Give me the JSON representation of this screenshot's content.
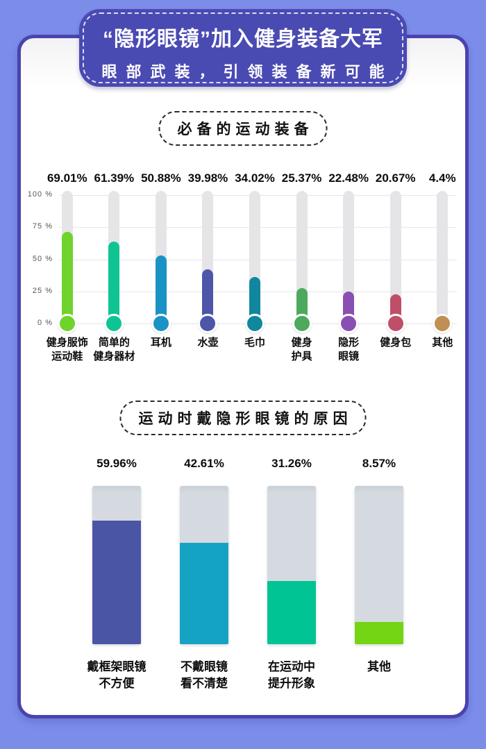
{
  "page": {
    "background": "#7b8ce9",
    "card_background": "#ffffff",
    "card_border_color": "#4a43ae"
  },
  "header": {
    "title": "“隐形眼镜”加入健身装备大军",
    "subtitle": "眼部武装，引领装备新可能",
    "badge_color": "#4a4ab3"
  },
  "chart_data": [
    {
      "type": "bar",
      "style": "thermometer-lollipop",
      "title": "必备的运动装备",
      "categories": [
        "健身服饰\n运动鞋",
        "简单的\n健身器材",
        "耳机",
        "水壶",
        "毛巾",
        "健身\n护具",
        "隐形\n眼镜",
        "健身包",
        "其他"
      ],
      "values": [
        69.01,
        61.39,
        50.88,
        39.98,
        34.02,
        25.37,
        22.48,
        20.67,
        4.4
      ],
      "value_labels": [
        "69.01%",
        "61.39%",
        "50.88%",
        "39.98%",
        "34.02%",
        "25.37%",
        "22.48%",
        "20.67%",
        "4.4%"
      ],
      "colors": [
        "#6fd32b",
        "#0fc493",
        "#1b92c4",
        "#4d56a9",
        "#11879e",
        "#4ca95e",
        "#8a4fb3",
        "#bf4f68",
        "#c08f55"
      ],
      "track_color": "#e5e5e8",
      "ylim": [
        0,
        100
      ],
      "yticks": [
        {
          "value": 100,
          "label": "100 %"
        },
        {
          "value": 75,
          "label": "75 %"
        },
        {
          "value": 50,
          "label": "50 %"
        },
        {
          "value": 25,
          "label": "25 %"
        },
        {
          "value": 0,
          "label": "0 %"
        }
      ],
      "grid": true,
      "legend": false
    },
    {
      "type": "bar",
      "style": "filled-column",
      "title": "运动时戴隐形眼镜的原因",
      "categories": [
        "戴框架眼镜\n不方便",
        "不戴眼镜\n看不清楚",
        "在运动中\n提升形象",
        "其他"
      ],
      "values": [
        59.96,
        42.61,
        31.26,
        8.57
      ],
      "value_labels": [
        "59.96%",
        "42.61%",
        "31.26%",
        "8.57%"
      ],
      "colors": [
        "#4a55a5",
        "#15a3c3",
        "#00c493",
        "#73d513"
      ],
      "track_color": "#d5dae0",
      "display_fill_percent": [
        78,
        64,
        40,
        14
      ],
      "grid": false,
      "legend": false
    }
  ]
}
